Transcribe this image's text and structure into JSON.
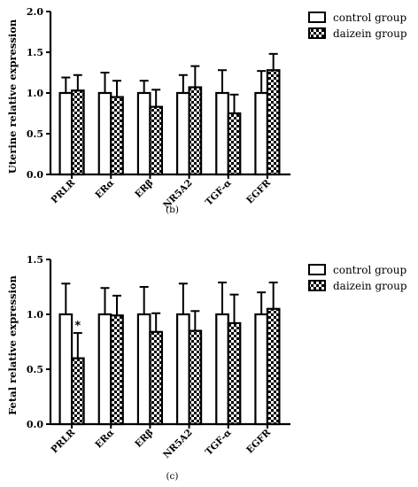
{
  "chart_data": [
    {
      "type": "bar",
      "ylabel": "Uterine relative expression",
      "caption": "(b)",
      "ylim": [
        0,
        2.0
      ],
      "yticks": [
        "0.0",
        "0.5",
        "1.0",
        "1.5",
        "2.0"
      ],
      "categories": [
        "PRLR",
        "ERα",
        "ERβ",
        "NR5A2",
        "TGF-α",
        "EGFR"
      ],
      "series": [
        {
          "name": "control group",
          "values": [
            1.0,
            1.0,
            1.0,
            1.0,
            1.0,
            1.0
          ],
          "errors": [
            0.19,
            0.25,
            0.15,
            0.22,
            0.28,
            0.27
          ]
        },
        {
          "name": "daizein group",
          "values": [
            1.03,
            0.95,
            0.83,
            1.07,
            0.75,
            1.28
          ],
          "errors": [
            0.19,
            0.2,
            0.21,
            0.26,
            0.23,
            0.2
          ]
        }
      ],
      "annotations": []
    },
    {
      "type": "bar",
      "ylabel": "Fetal relative expression",
      "caption": "(c)",
      "ylim": [
        0,
        1.5
      ],
      "yticks": [
        "0.0",
        "0.5",
        "1.0",
        "1.5"
      ],
      "categories": [
        "PRLR",
        "ERα",
        "ERβ",
        "NR5A2",
        "TGF-α",
        "EGFR"
      ],
      "series": [
        {
          "name": "control group",
          "values": [
            1.0,
            1.0,
            1.0,
            1.0,
            1.0,
            1.0
          ],
          "errors": [
            0.28,
            0.24,
            0.25,
            0.28,
            0.29,
            0.2
          ]
        },
        {
          "name": "daizein group",
          "values": [
            0.6,
            0.99,
            0.84,
            0.85,
            0.92,
            1.05
          ],
          "errors": [
            0.23,
            0.18,
            0.17,
            0.18,
            0.26,
            0.24
          ]
        }
      ],
      "annotations": [
        {
          "text": "*",
          "category": "PRLR",
          "series": "daizein group"
        }
      ]
    }
  ]
}
